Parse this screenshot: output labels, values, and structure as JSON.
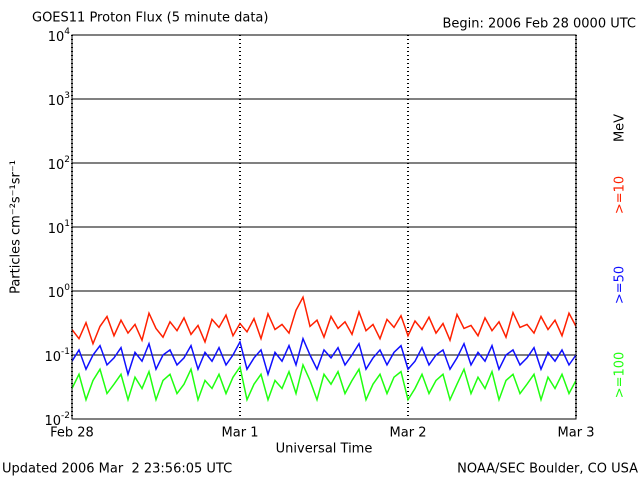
{
  "chart_data": {
    "type": "line",
    "title": "GOES11 Proton Flux (5 minute data)",
    "subtitle": "Begin: 2006 Feb 28 0000 UTC",
    "xlabel": "Universal Time",
    "ylabel": "Particles cm⁻²s⁻¹sr⁻¹",
    "legend_unit": "MeV",
    "footer_left": "Updated 2006 Mar  2 23:56:05 UTC",
    "footer_right": "NOAA/SEC Boulder, CO USA",
    "log_scale_y": true,
    "grid": true,
    "xlim": [
      0,
      72
    ],
    "xticks": [
      {
        "value": 0,
        "label": "Feb 28"
      },
      {
        "value": 24,
        "label": "Mar 1"
      },
      {
        "value": 48,
        "label": "Mar 2"
      },
      {
        "value": 72,
        "label": "Mar 3"
      }
    ],
    "ylim": [
      0.01,
      10000
    ],
    "yticks": [
      {
        "value": 0.01,
        "label": "10",
        "exponent": "-2"
      },
      {
        "value": 0.1,
        "label": "10",
        "exponent": "-1"
      },
      {
        "value": 1,
        "label": "10",
        "exponent": "0"
      },
      {
        "value": 10,
        "label": "10",
        "exponent": "1"
      },
      {
        "value": 100,
        "label": "10",
        "exponent": "2"
      },
      {
        "value": 1000,
        "label": "10",
        "exponent": "3"
      },
      {
        "value": 10000,
        "label": "10",
        "exponent": "4"
      }
    ],
    "x": [
      0,
      1,
      2,
      3,
      4,
      5,
      6,
      7,
      8,
      9,
      10,
      11,
      12,
      13,
      14,
      15,
      16,
      17,
      18,
      19,
      20,
      21,
      22,
      23,
      24,
      25,
      26,
      27,
      28,
      29,
      30,
      31,
      32,
      33,
      34,
      35,
      36,
      37,
      38,
      39,
      40,
      41,
      42,
      43,
      44,
      45,
      46,
      47,
      48,
      49,
      50,
      51,
      52,
      53,
      54,
      55,
      56,
      57,
      58,
      59,
      60,
      61,
      62,
      63,
      64,
      65,
      66,
      67,
      68,
      69,
      70,
      71,
      72
    ],
    "series": [
      {
        "name": ">=10",
        "color": "#ff2000",
        "values": [
          0.25,
          0.18,
          0.32,
          0.15,
          0.28,
          0.4,
          0.2,
          0.35,
          0.22,
          0.3,
          0.17,
          0.45,
          0.26,
          0.19,
          0.33,
          0.24,
          0.38,
          0.21,
          0.29,
          0.16,
          0.36,
          0.27,
          0.42,
          0.2,
          0.31,
          0.23,
          0.37,
          0.18,
          0.44,
          0.25,
          0.3,
          0.22,
          0.5,
          0.8,
          0.28,
          0.35,
          0.19,
          0.4,
          0.26,
          0.33,
          0.21,
          0.47,
          0.24,
          0.3,
          0.18,
          0.36,
          0.27,
          0.41,
          0.2,
          0.34,
          0.25,
          0.39,
          0.22,
          0.31,
          0.17,
          0.43,
          0.26,
          0.29,
          0.2,
          0.38,
          0.24,
          0.33,
          0.19,
          0.46,
          0.27,
          0.3,
          0.22,
          0.4,
          0.25,
          0.35,
          0.2,
          0.45,
          0.28
        ]
      },
      {
        "name": ">=50",
        "color": "#1010ff",
        "values": [
          0.08,
          0.12,
          0.06,
          0.1,
          0.14,
          0.07,
          0.09,
          0.13,
          0.05,
          0.11,
          0.08,
          0.15,
          0.06,
          0.1,
          0.12,
          0.07,
          0.09,
          0.14,
          0.06,
          0.11,
          0.08,
          0.13,
          0.07,
          0.1,
          0.16,
          0.06,
          0.09,
          0.12,
          0.05,
          0.11,
          0.08,
          0.14,
          0.07,
          0.18,
          0.1,
          0.06,
          0.12,
          0.09,
          0.13,
          0.07,
          0.1,
          0.15,
          0.06,
          0.09,
          0.12,
          0.07,
          0.11,
          0.14,
          0.06,
          0.08,
          0.13,
          0.07,
          0.1,
          0.12,
          0.06,
          0.09,
          0.15,
          0.07,
          0.11,
          0.08,
          0.14,
          0.06,
          0.1,
          0.12,
          0.07,
          0.09,
          0.13,
          0.06,
          0.11,
          0.08,
          0.12,
          0.07,
          0.1
        ]
      },
      {
        "name": ">=100",
        "color": "#20ff10",
        "values": [
          0.03,
          0.05,
          0.02,
          0.04,
          0.06,
          0.025,
          0.035,
          0.05,
          0.02,
          0.045,
          0.03,
          0.055,
          0.02,
          0.04,
          0.05,
          0.025,
          0.035,
          0.06,
          0.02,
          0.04,
          0.03,
          0.05,
          0.025,
          0.045,
          0.065,
          0.02,
          0.035,
          0.05,
          0.02,
          0.04,
          0.03,
          0.055,
          0.025,
          0.07,
          0.04,
          0.02,
          0.05,
          0.035,
          0.055,
          0.025,
          0.04,
          0.06,
          0.02,
          0.035,
          0.05,
          0.025,
          0.045,
          0.055,
          0.02,
          0.03,
          0.05,
          0.025,
          0.04,
          0.05,
          0.02,
          0.035,
          0.06,
          0.025,
          0.045,
          0.03,
          0.055,
          0.02,
          0.04,
          0.05,
          0.025,
          0.035,
          0.05,
          0.02,
          0.045,
          0.03,
          0.05,
          0.025,
          0.04
        ]
      }
    ]
  }
}
